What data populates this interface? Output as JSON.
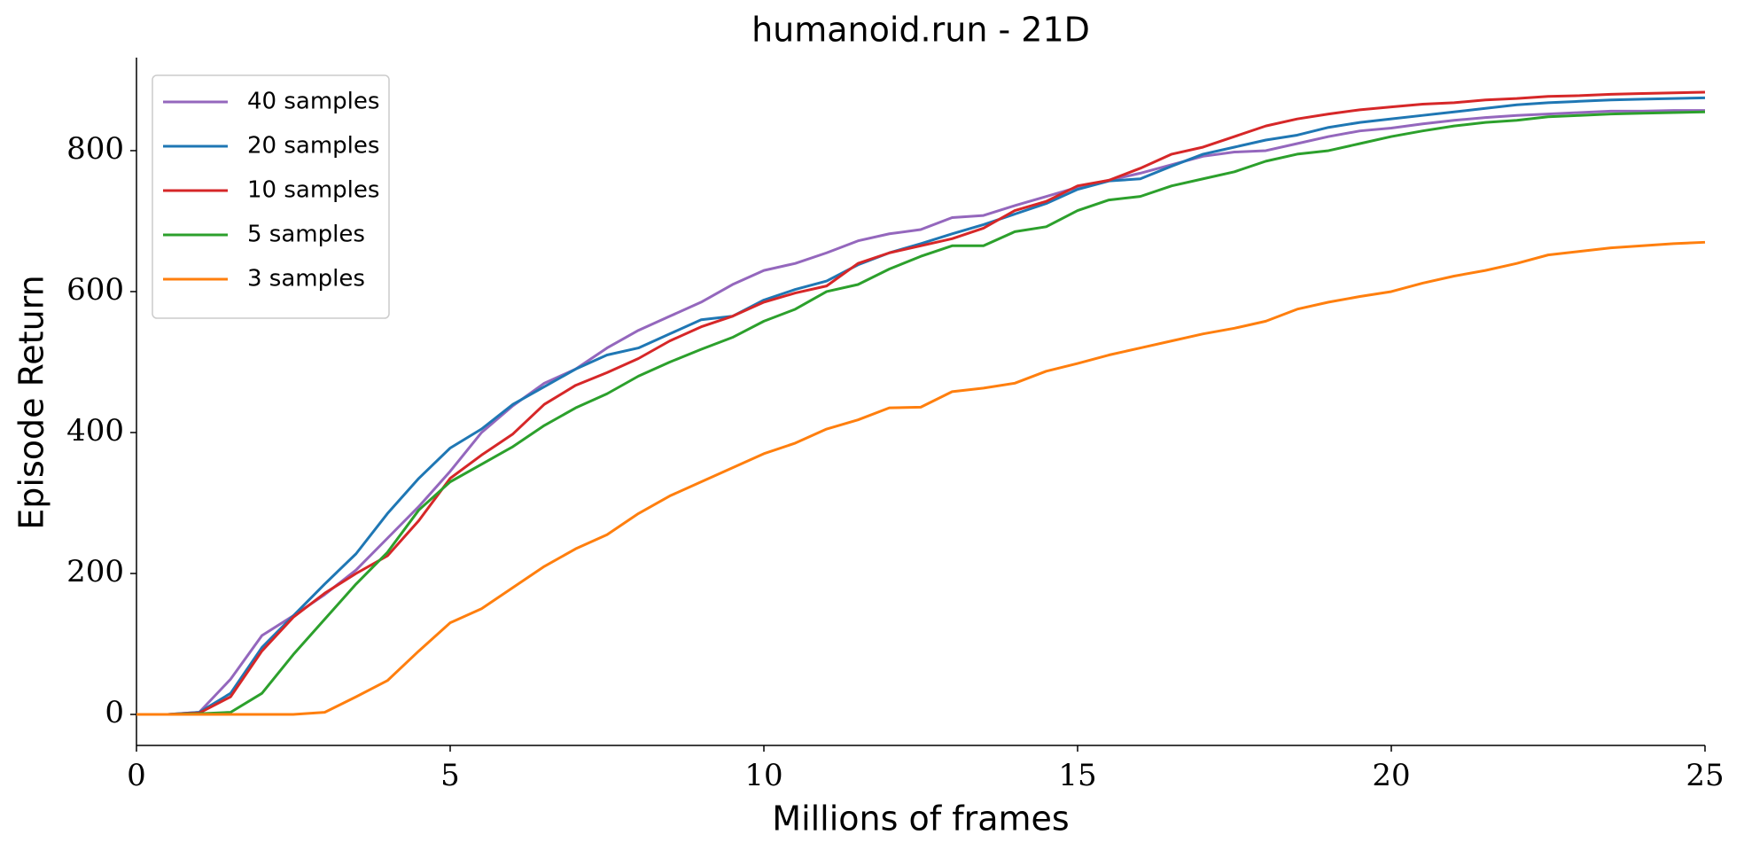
{
  "chart_data": {
    "type": "line",
    "title": "humanoid.run - 21D",
    "xlabel": "Millions of frames",
    "ylabel": "Episode Return",
    "x": [
      0,
      0.5,
      1,
      1.5,
      2,
      2.5,
      3,
      3.5,
      4,
      4.5,
      5,
      5.5,
      6,
      6.5,
      7,
      7.5,
      8,
      8.5,
      9,
      9.5,
      10,
      10.5,
      11,
      11.5,
      12,
      12.5,
      13,
      13.5,
      14,
      14.5,
      15,
      15.5,
      16,
      16.5,
      17,
      17.5,
      18,
      18.5,
      19,
      19.5,
      20,
      20.5,
      21,
      21.5,
      22,
      22.5,
      23,
      23.5,
      24,
      24.5,
      25
    ],
    "series": [
      {
        "name": "40 samples",
        "color": "#9467bd",
        "values": [
          0,
          0,
          3,
          50,
          112,
          140,
          170,
          205,
          250,
          295,
          345,
          400,
          438,
          470,
          490,
          520,
          545,
          565,
          585,
          610,
          630,
          640,
          655,
          672,
          682,
          688,
          705,
          708,
          722,
          735,
          748,
          758,
          768,
          780,
          792,
          798,
          800,
          810,
          820,
          828,
          832,
          838,
          843,
          847,
          850,
          852,
          854,
          856,
          856,
          857,
          857
        ]
      },
      {
        "name": "20 samples",
        "color": "#1f77b4",
        "values": [
          0,
          0,
          3,
          30,
          95,
          140,
          185,
          228,
          285,
          335,
          378,
          405,
          440,
          465,
          490,
          510,
          520,
          540,
          560,
          565,
          588,
          603,
          615,
          638,
          655,
          668,
          682,
          695,
          710,
          725,
          745,
          757,
          760,
          778,
          795,
          805,
          815,
          822,
          833,
          840,
          845,
          850,
          855,
          860,
          865,
          868,
          870,
          872,
          873,
          874,
          875
        ]
      },
      {
        "name": "10 samples",
        "color": "#d62728",
        "values": [
          0,
          0,
          2,
          25,
          90,
          138,
          172,
          200,
          225,
          275,
          335,
          368,
          398,
          440,
          467,
          485,
          505,
          530,
          550,
          565,
          585,
          598,
          608,
          640,
          655,
          665,
          675,
          690,
          715,
          728,
          750,
          758,
          775,
          795,
          805,
          820,
          835,
          845,
          852,
          858,
          862,
          866,
          868,
          872,
          874,
          877,
          878,
          880,
          881,
          882,
          883
        ]
      },
      {
        "name": "5 samples",
        "color": "#2ca02c",
        "values": [
          0,
          0,
          1,
          3,
          30,
          85,
          135,
          185,
          230,
          290,
          330,
          355,
          380,
          410,
          435,
          455,
          480,
          500,
          518,
          535,
          558,
          575,
          600,
          610,
          632,
          650,
          665,
          665,
          685,
          692,
          715,
          730,
          735,
          750,
          760,
          770,
          785,
          795,
          800,
          810,
          820,
          828,
          835,
          840,
          843,
          848,
          850,
          852,
          853,
          854,
          855
        ]
      },
      {
        "name": "3 samples",
        "color": "#ff7f0e",
        "values": [
          0,
          0,
          0,
          0,
          0,
          0,
          3,
          25,
          48,
          90,
          130,
          150,
          180,
          210,
          235,
          255,
          285,
          310,
          330,
          350,
          370,
          385,
          405,
          418,
          435,
          436,
          458,
          463,
          470,
          487,
          498,
          510,
          520,
          530,
          540,
          548,
          558,
          575,
          585,
          593,
          600,
          612,
          622,
          630,
          640,
          652,
          657,
          662,
          665,
          668,
          670
        ]
      }
    ],
    "xlim": [
      0,
      25
    ],
    "xticks": [
      0,
      5,
      10,
      15,
      20,
      25
    ],
    "ylim": [
      -44,
      932
    ],
    "yticks": [
      0,
      200,
      400,
      600,
      800
    ],
    "grid": false,
    "legend": "upper left"
  }
}
